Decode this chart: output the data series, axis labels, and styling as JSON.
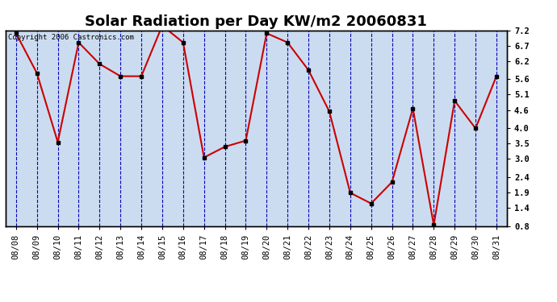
{
  "title": "Solar Radiation per Day KW/m2 20060831",
  "copyright": "Copyright 2006 Castronics.com",
  "dates": [
    "08/08",
    "08/09",
    "08/10",
    "08/11",
    "08/12",
    "08/13",
    "08/14",
    "08/15",
    "08/16",
    "08/17",
    "08/18",
    "08/19",
    "08/20",
    "08/21",
    "08/22",
    "08/23",
    "08/24",
    "08/25",
    "08/26",
    "08/27",
    "08/28",
    "08/29",
    "08/30",
    "08/31"
  ],
  "values": [
    7.1,
    5.8,
    3.55,
    6.8,
    6.1,
    5.7,
    5.7,
    7.35,
    6.8,
    3.05,
    3.4,
    3.6,
    7.1,
    6.8,
    5.9,
    4.55,
    1.9,
    1.55,
    2.25,
    4.65,
    0.85,
    4.9,
    4.0,
    5.7
  ],
  "ylim": [
    0.8,
    7.2
  ],
  "yticks": [
    0.8,
    1.4,
    1.9,
    2.4,
    3.0,
    3.5,
    4.0,
    4.6,
    5.1,
    5.6,
    6.2,
    6.7,
    7.2
  ],
  "line_color": "#cc0000",
  "marker_color": "#000000",
  "bg_color": "#ffffff",
  "plot_bg_color": "#ccdcf0",
  "grid_color": "#0000bb",
  "border_color": "#000000",
  "title_fontsize": 13,
  "copyright_fontsize": 6.5,
  "tick_fontsize": 7.5
}
